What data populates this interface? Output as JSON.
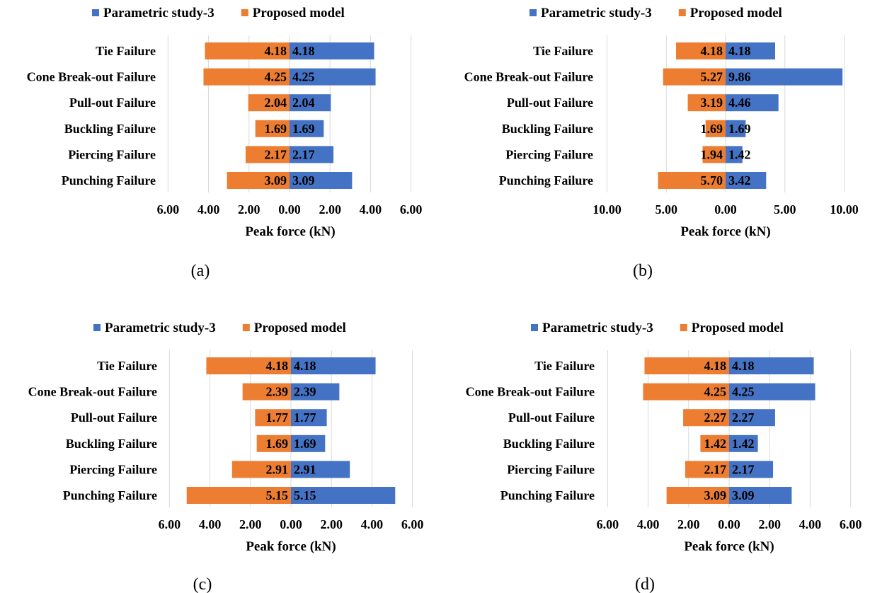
{
  "figure": {
    "colors": {
      "study": "#4472c4",
      "proposed": "#ed7d31",
      "grid": "#d9d9d9",
      "text": "#000000"
    },
    "panels": [
      {
        "caption": "(a)",
        "legend": [
          "Parametric study-3",
          "Proposed model"
        ],
        "xlabel": "Peak force (kN)",
        "tick_labels": [
          "6.00",
          "4.00",
          "2.00",
          "0.00",
          "2.00",
          "4.00",
          "6.00"
        ]
      },
      {
        "caption": "(b)",
        "legend": [
          "Parametric study-3",
          "Proposed model"
        ],
        "xlabel": "Peak force (kN)",
        "tick_labels": [
          "10.00",
          "5.00",
          "0.00",
          "5.00",
          "10.00"
        ]
      },
      {
        "caption": "(c)",
        "legend": [
          "Parametric study-3",
          "Proposed model"
        ],
        "xlabel": "Peak force (kN)",
        "tick_labels": [
          "6.00",
          "4.00",
          "2.00",
          "0.00",
          "2.00",
          "4.00",
          "6.00"
        ]
      },
      {
        "caption": "(d)",
        "legend": [
          "Parametric study-3",
          "Proposed model"
        ],
        "xlabel": "Peak force (kN)",
        "tick_labels": [
          "6.00",
          "4.00",
          "2.00",
          "0.00",
          "2.00",
          "4.00",
          "6.00"
        ]
      }
    ]
  },
  "chart_data": [
    {
      "type": "bar",
      "orientation": "horizontal-diverging",
      "categories": [
        "Tie Failure",
        "Cone Break-out Failure",
        "Pull-out Failure",
        "Buckling Failure",
        "Piercing Failure",
        "Punching Failure"
      ],
      "series": [
        {
          "name": "Parametric study-3",
          "direction": "right",
          "values": [
            4.18,
            4.25,
            2.04,
            1.69,
            2.17,
            3.09
          ],
          "labels": [
            "4.18",
            "4.25",
            "2.04",
            "1.69",
            "2.17",
            "3.09"
          ]
        },
        {
          "name": "Proposed model",
          "direction": "left",
          "values": [
            4.18,
            4.25,
            2.04,
            1.69,
            2.17,
            3.09
          ],
          "labels": [
            "4.18",
            "4.25",
            "2.04",
            "1.69",
            "2.17",
            "3.09"
          ]
        }
      ],
      "xlabel": "Peak force (kN)",
      "xlim": [
        -6,
        6
      ],
      "grid": true,
      "legend": "top"
    },
    {
      "type": "bar",
      "orientation": "horizontal-diverging",
      "categories": [
        "Tie Failure",
        "Cone Break-out Failure",
        "Pull-out Failure",
        "Buckling Failure",
        "Piercing Failure",
        "Punching Failure"
      ],
      "series": [
        {
          "name": "Parametric study-3",
          "direction": "right",
          "values": [
            4.18,
            9.86,
            4.46,
            1.69,
            1.42,
            3.42
          ],
          "labels": [
            "4.18",
            "9.86",
            "4.46",
            "1.69",
            "1.42",
            "3.42"
          ]
        },
        {
          "name": "Proposed model",
          "direction": "left",
          "values": [
            4.18,
            5.27,
            3.19,
            1.69,
            1.94,
            5.7
          ],
          "labels": [
            "4.18",
            "5.27",
            "3.19",
            "1.69",
            "1.94",
            "5.70"
          ]
        }
      ],
      "xlabel": "Peak force (kN)",
      "xlim": [
        -10,
        10
      ],
      "grid": true,
      "legend": "top"
    },
    {
      "type": "bar",
      "orientation": "horizontal-diverging",
      "categories": [
        "Tie Failure",
        "Cone Break-out Failure",
        "Pull-out Failure",
        "Buckling Failure",
        "Piercing Failure",
        "Punching Failure"
      ],
      "series": [
        {
          "name": "Parametric study-3",
          "direction": "right",
          "values": [
            4.18,
            2.39,
            1.77,
            1.69,
            2.91,
            5.15
          ],
          "labels": [
            "4.18",
            "2.39",
            "1.77",
            "1.69",
            "2.91",
            "5.15"
          ]
        },
        {
          "name": "Proposed model",
          "direction": "left",
          "values": [
            4.18,
            2.39,
            1.77,
            1.69,
            2.91,
            5.15
          ],
          "labels": [
            "4.18",
            "2.39",
            "1.77",
            "1.69",
            "2.91",
            "5.15"
          ]
        }
      ],
      "xlabel": "Peak force (kN)",
      "xlim": [
        -6,
        6
      ],
      "grid": true,
      "legend": "top"
    },
    {
      "type": "bar",
      "orientation": "horizontal-diverging",
      "categories": [
        "Tie Failure",
        "Cone Break-out Failure",
        "Pull-out Failure",
        "Buckling Failure",
        "Piercing Failure",
        "Punching Failure"
      ],
      "series": [
        {
          "name": "Parametric study-3",
          "direction": "right",
          "values": [
            4.18,
            4.25,
            2.27,
            1.42,
            2.17,
            3.09
          ],
          "labels": [
            "4.18",
            "4.25",
            "2.27",
            "1.42",
            "2.17",
            "3.09"
          ]
        },
        {
          "name": "Proposed model",
          "direction": "left",
          "values": [
            4.18,
            4.25,
            2.27,
            1.42,
            2.17,
            3.09
          ],
          "labels": [
            "4.18",
            "4.25",
            "2.27",
            "1.42",
            "2.17",
            "3.09"
          ]
        }
      ],
      "xlabel": "Peak force (kN)",
      "xlim": [
        -6,
        6
      ],
      "grid": true,
      "legend": "top"
    }
  ]
}
